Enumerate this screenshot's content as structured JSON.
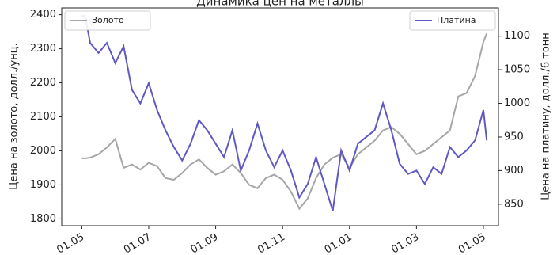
{
  "chart_data": {
    "type": "line",
    "title": "Динамика цен на металлы",
    "ylabel": "Цена на золото, долл./унц.",
    "y2label": "Цена на платину, долл./6 тонн",
    "x": [
      0,
      0.1,
      0.25,
      0.5,
      0.75,
      1,
      1.25,
      1.5,
      1.75,
      2,
      2.25,
      2.5,
      2.75,
      3,
      3.25,
      3.5,
      3.75,
      4,
      4.25,
      4.5,
      4.75,
      5,
      5.25,
      5.5,
      5.75,
      6,
      6.25,
      6.5,
      6.75,
      7,
      7.25,
      7.5,
      7.75,
      8,
      8.25,
      8.5,
      8.75,
      9,
      9.25,
      9.5,
      9.75,
      10,
      10.25,
      10.5,
      10.75,
      11,
      11.25,
      11.5,
      11.75,
      12,
      12.1
    ],
    "series": [
      {
        "name": "Золото",
        "color": "#a6a6a6",
        "legend": "upper left",
        "values": [
          1978,
          1978,
          1980,
          1990,
          2010,
          2035,
          1950,
          1960,
          1945,
          1965,
          1955,
          1920,
          1915,
          1935,
          1960,
          1975,
          1950,
          1930,
          1940,
          1960,
          1935,
          1900,
          1890,
          1920,
          1930,
          1915,
          1880,
          1830,
          1860,
          1920,
          1960,
          1980,
          1990,
          1950,
          1990,
          2010,
          2030,
          2060,
          2070,
          2050,
          2020,
          1990,
          2000,
          2020,
          2040,
          2060,
          2160,
          2170,
          2220,
          2320,
          2345
        ]
      },
      {
        "name": "Платина",
        "color": "#5f58c4",
        "legend": "upper right",
        "axis": "y2",
        "values": [
          1130,
          1130,
          1090,
          1075,
          1090,
          1060,
          1085,
          1020,
          1000,
          1030,
          990,
          960,
          935,
          915,
          940,
          975,
          960,
          940,
          920,
          960,
          900,
          930,
          970,
          930,
          905,
          930,
          900,
          860,
          880,
          920,
          880,
          840,
          930,
          900,
          940,
          950,
          960,
          1000,
          960,
          910,
          895,
          900,
          880,
          905,
          895,
          935,
          920,
          930,
          945,
          990,
          945
        ]
      }
    ],
    "xlim": [
      -0.6,
      12.45
    ],
    "xticks": [
      {
        "value": 0,
        "label": "01.05"
      },
      {
        "value": 2,
        "label": "01.07"
      },
      {
        "value": 4,
        "label": "01.09"
      },
      {
        "value": 6,
        "label": "01.11"
      },
      {
        "value": 8,
        "label": "01.01"
      },
      {
        "value": 10,
        "label": "01.03"
      },
      {
        "value": 12,
        "label": "01.05"
      }
    ],
    "ylim": [
      1780,
      2420
    ],
    "yticks": [
      1800,
      1900,
      2000,
      2100,
      2200,
      2300,
      2400
    ],
    "y2lim": [
      818,
      1142
    ],
    "y2ticks": [
      850,
      900,
      950,
      1000,
      1050,
      1100
    ]
  }
}
